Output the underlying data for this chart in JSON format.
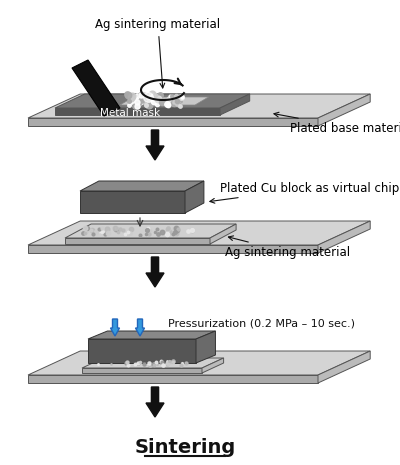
{
  "title": "Sintering",
  "bg_color": "#ffffff",
  "step1": {
    "label_ag": "Ag sintering material",
    "label_metal": "Metal mask",
    "label_base": "Plated base material"
  },
  "step2": {
    "label_cu": "Plated Cu block as virtual chip",
    "label_ag": "Ag sintering material"
  },
  "step3": {
    "label_press": "Pressurization (0.2 MPa – 10 sec.)"
  },
  "plate_top": "#d4d4d4",
  "plate_front": "#aaaaaa",
  "plate_right": "#bbbbbb",
  "mask_top": "#787878",
  "mask_front": "#555555",
  "mask_right": "#666666",
  "cu_top": "#888888",
  "cu_front": "#555555",
  "cu_right": "#6a6a6a",
  "ag_top": "#d0d0d0",
  "ag_front": "#aaaaaa",
  "blue_arrow": "#3399dd"
}
